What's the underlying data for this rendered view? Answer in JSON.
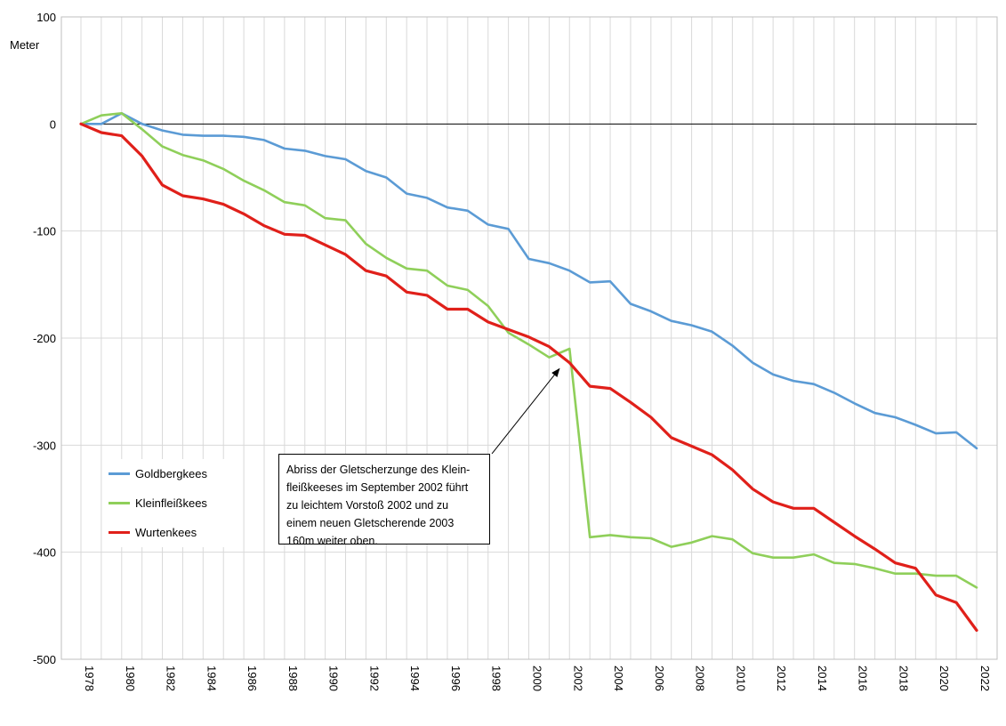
{
  "chart_data": {
    "type": "line",
    "title": "",
    "ylabel": "Meter",
    "xlabel": "",
    "ylim": [
      -500,
      100
    ],
    "xlim": [
      1978,
      2022
    ],
    "yticks": [
      100,
      0,
      -100,
      -200,
      -300,
      -400,
      -500
    ],
    "xticks": [
      1978,
      1980,
      1982,
      1984,
      1986,
      1988,
      1990,
      1992,
      1994,
      1996,
      1998,
      2000,
      2002,
      2004,
      2006,
      2008,
      2010,
      2012,
      2014,
      2016,
      2018,
      2020,
      2022
    ],
    "grid": true,
    "legend": "bottom-left",
    "x": [
      1978,
      1979,
      1980,
      1981,
      1982,
      1983,
      1984,
      1985,
      1986,
      1987,
      1988,
      1989,
      1990,
      1991,
      1992,
      1993,
      1994,
      1995,
      1996,
      1997,
      1998,
      1999,
      2000,
      2001,
      2002,
      2003,
      2004,
      2005,
      2006,
      2007,
      2008,
      2009,
      2010,
      2011,
      2012,
      2013,
      2014,
      2015,
      2016,
      2017,
      2018,
      2019,
      2020,
      2021,
      2022
    ],
    "series": [
      {
        "name": "Goldbergkees",
        "color": "#5b9bd5",
        "values": [
          0,
          0,
          10,
          0,
          -6,
          -10,
          -11,
          -11,
          -12,
          -15,
          -23,
          -25,
          -30,
          -33,
          -44,
          -50,
          -65,
          -69,
          -78,
          -81,
          -94,
          -98,
          -126,
          -130,
          -137,
          -148,
          -147,
          -168,
          -175,
          -184,
          -188,
          -194,
          -207,
          -223,
          -234,
          -240,
          -243,
          -251,
          -261,
          -270,
          -274,
          -281,
          -289,
          -288,
          -303
        ]
      },
      {
        "name": "Kleinfleißkees",
        "color": "#8fcf5a",
        "values": [
          0,
          8,
          10,
          -5,
          -21,
          -29,
          -34,
          -42,
          -53,
          -62,
          -73,
          -76,
          -88,
          -90,
          -112,
          -125,
          -135,
          -137,
          -151,
          -155,
          -170,
          -195,
          -206,
          -218,
          -210,
          -386,
          -384,
          -386,
          -387,
          -395,
          -391,
          -385,
          -388,
          -401,
          -405,
          -405,
          -402,
          -410,
          -411,
          -415,
          -420,
          -420,
          -422,
          -422,
          -433
        ]
      },
      {
        "name": "Wurtenkees",
        "color": "#e0201a",
        "values": [
          0,
          -8,
          -11,
          -30,
          -57,
          -67,
          -70,
          -75,
          -84,
          -95,
          -103,
          -104,
          -113,
          -122,
          -137,
          -142,
          -157,
          -160,
          -173,
          -173,
          -185,
          -192,
          -199,
          -208,
          -223,
          -245,
          -247,
          -260,
          -274,
          -293,
          -301,
          -309,
          -323,
          -341,
          -353,
          -359,
          -359,
          -372,
          -385,
          -397,
          -410,
          -415,
          -440,
          -447,
          -473
        ]
      }
    ],
    "annotation": {
      "text_lines": [
        "Abriss der Gletscherzunge des Klein-",
        "fleißkeeses im September 2002 führt",
        "zu leichtem Vorstoß 2002 und zu",
        "einem neuen Gletscherende 2003",
        "160m weiter oben."
      ],
      "arrow_target": {
        "x": 2001.5,
        "y": -222
      }
    }
  }
}
